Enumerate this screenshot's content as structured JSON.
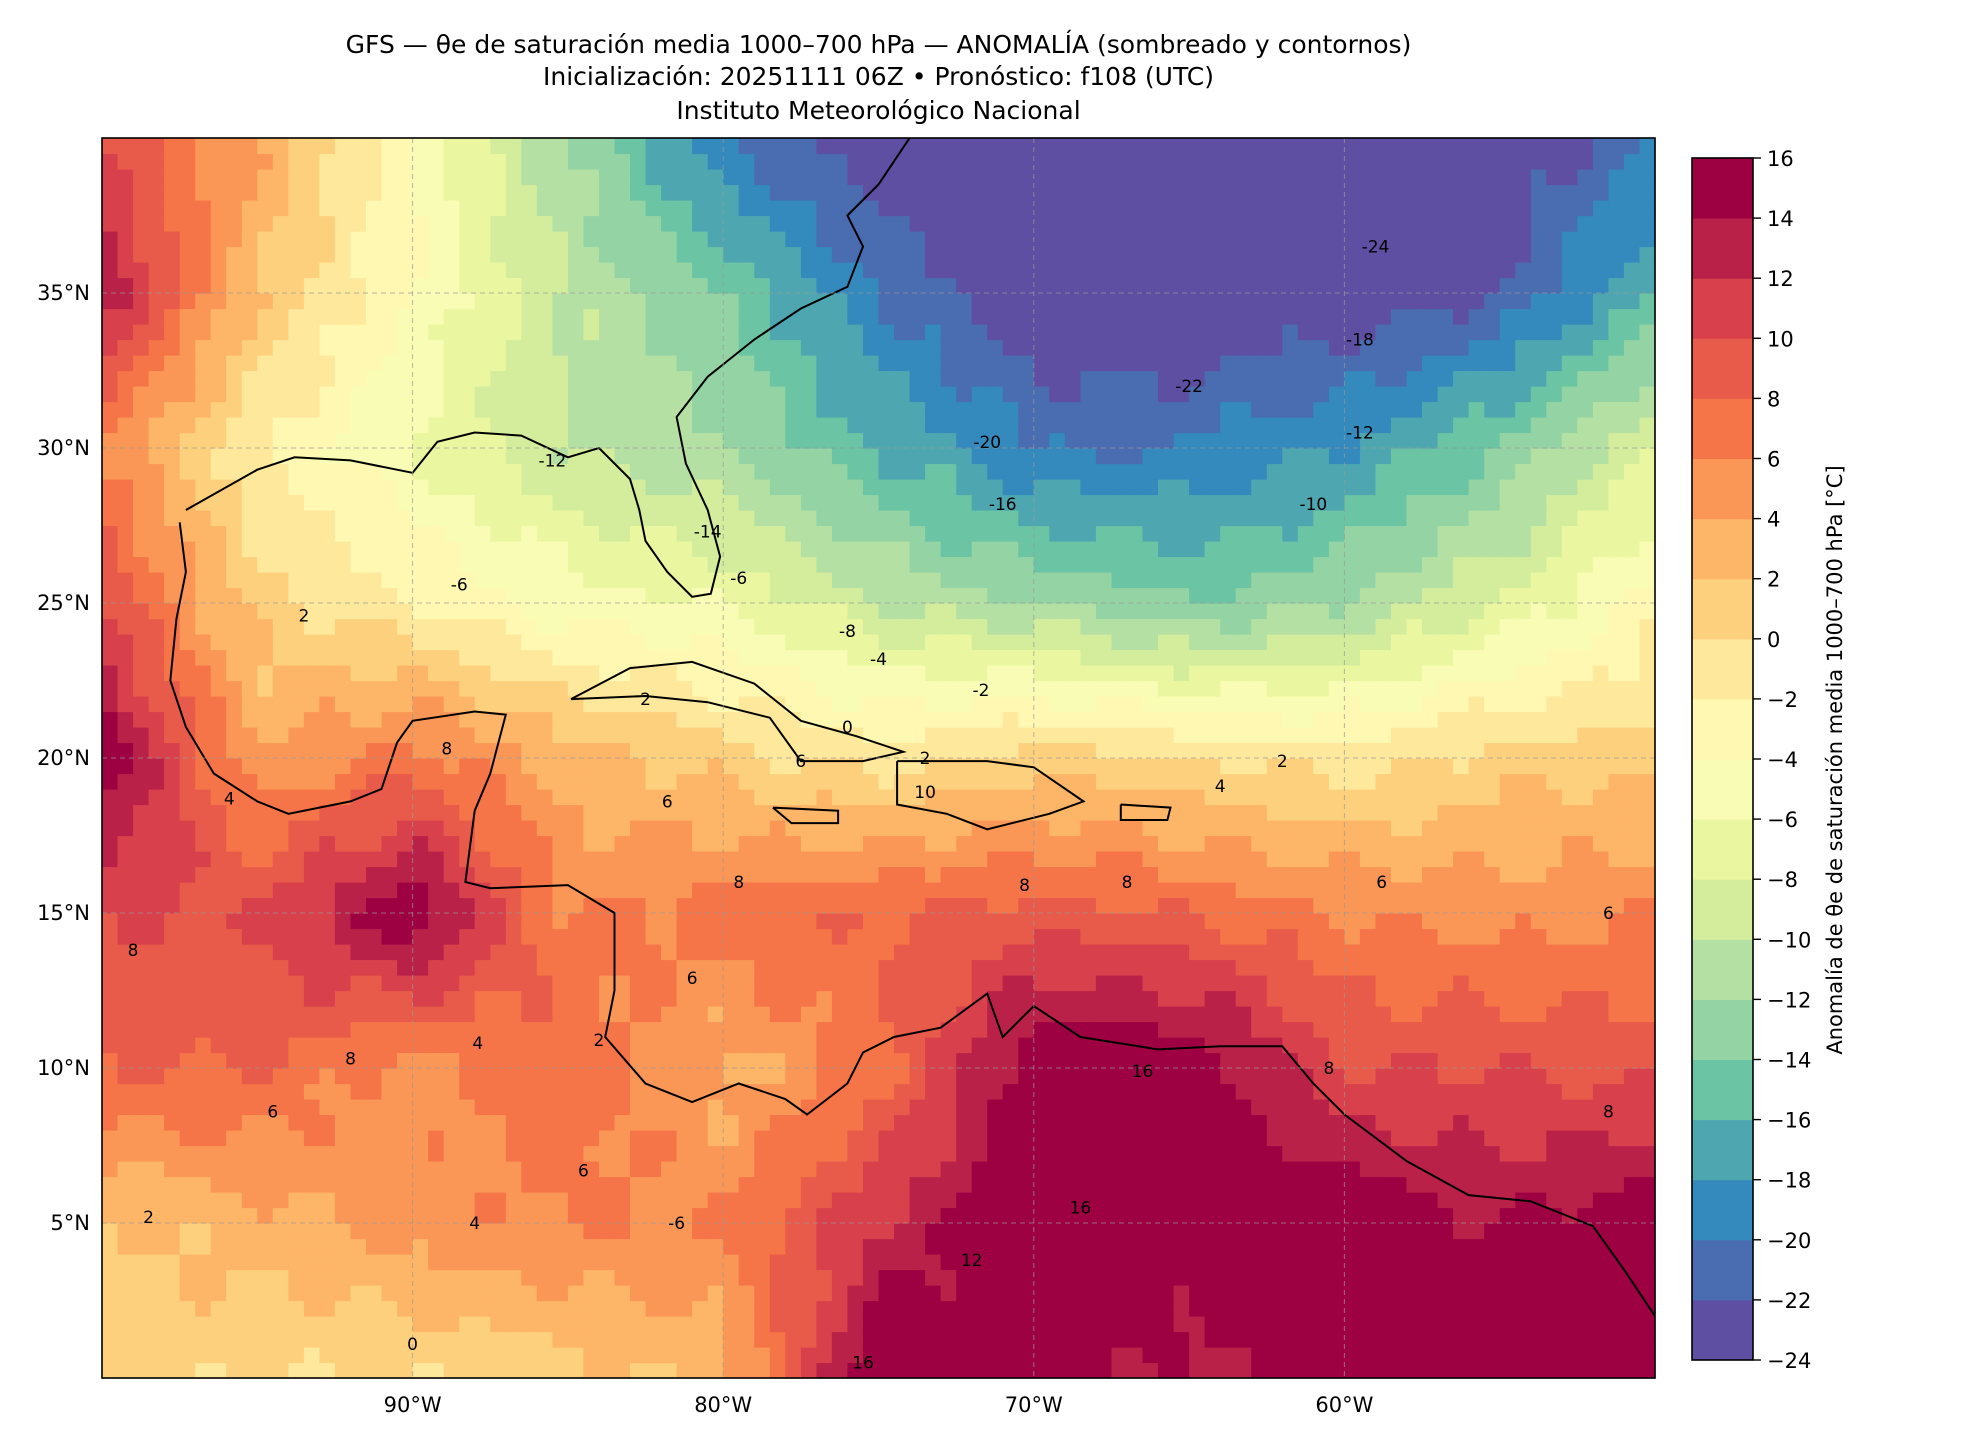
{
  "title": {
    "line1": "GFS — θe de saturación media 1000–700 hPa — ANOMALÍA (sombreado y contornos)",
    "line2": "Inicialización: 20251111 06Z   •   Pronóstico: f108 (UTC)",
    "line3": "Instituto Meteorológico Nacional"
  },
  "chart_data": {
    "type": "heatmap",
    "title": "GFS — θe de saturación media 1000–700 hPa — ANOMALÍA (sombreado y contornos)",
    "extent": {
      "lon": [
        -100,
        -50
      ],
      "lat": [
        0,
        40
      ]
    },
    "grid_lons": [
      -100,
      -95,
      -90,
      -85,
      -80,
      -75,
      -70,
      -65,
      -60,
      -55,
      -50
    ],
    "grid_lats": [
      40,
      35,
      30,
      25,
      20,
      15,
      10,
      5,
      0
    ],
    "values": [
      [
        10,
        4,
        -4,
        -12,
        -20,
        -24,
        -24,
        -24,
        -24,
        -24,
        -20
      ],
      [
        14,
        2,
        -4,
        -10,
        -14,
        -20,
        -24,
        -24,
        -24,
        -22,
        -16
      ],
      [
        6,
        -2,
        -6,
        -10,
        -12,
        -16,
        -20,
        -20,
        -18,
        -14,
        -8
      ],
      [
        10,
        1,
        -2,
        -5,
        -6,
        -10,
        -12,
        -14,
        -12,
        -8,
        -3
      ],
      [
        16,
        4,
        7,
        3,
        1,
        -1,
        1,
        0,
        -1,
        1,
        1
      ],
      [
        10,
        10,
        16,
        6,
        7,
        8,
        9,
        8,
        6,
        5,
        6
      ],
      [
        8,
        8,
        5,
        8,
        3,
        7,
        16,
        16,
        10,
        10,
        9
      ],
      [
        2,
        3,
        5,
        6,
        6,
        12,
        16,
        16,
        16,
        14,
        16
      ],
      [
        1,
        0,
        0,
        1,
        3,
        16,
        16,
        13,
        16,
        16,
        16
      ]
    ],
    "x_ticks": [
      {
        "value": -90,
        "label": "90°W"
      },
      {
        "value": -80,
        "label": "80°W"
      },
      {
        "value": -70,
        "label": "70°W"
      },
      {
        "value": -60,
        "label": "60°W"
      }
    ],
    "y_ticks": [
      {
        "value": 35,
        "label": "35°N"
      },
      {
        "value": 30,
        "label": "30°N"
      },
      {
        "value": 25,
        "label": "25°N"
      },
      {
        "value": 20,
        "label": "20°N"
      },
      {
        "value": 15,
        "label": "15°N"
      },
      {
        "value": 10,
        "label": "10°N"
      },
      {
        "value": 5,
        "label": "5°N"
      }
    ],
    "grid": true,
    "colorbar": {
      "label": "Anomalía de θe de saturación media 1000–700 hPa [°C]",
      "levels": [
        -24,
        -22,
        -20,
        -18,
        -16,
        -14,
        -12,
        -10,
        -8,
        -6,
        -4,
        -2,
        0,
        2,
        4,
        6,
        8,
        10,
        12,
        14,
        16
      ],
      "tick_labels": [
        "−24",
        "−22",
        "−20",
        "−18",
        "−16",
        "−14",
        "−12",
        "−10",
        "−8",
        "−6",
        "−4",
        "−2",
        "0",
        "2",
        "4",
        "6",
        "8",
        "10",
        "12",
        "14",
        "16"
      ],
      "colors": [
        "#5e4fa2",
        "#4a6cb0",
        "#3489bd",
        "#4ea7b0",
        "#6bc4a4",
        "#94d4a4",
        "#b5e0a3",
        "#d4ed9c",
        "#ebf7a0",
        "#f9fcb4",
        "#fef8b3",
        "#fee89b",
        "#fdd07e",
        "#fdb567",
        "#fa9757",
        "#f57448",
        "#e85b4a",
        "#d8404c",
        "#ba2149",
        "#9e0142"
      ]
    },
    "contour_labels": [
      {
        "lon": -59,
        "lat": 36.5,
        "text": "-24"
      },
      {
        "lon": -59.5,
        "lat": 33.5,
        "text": "-18"
      },
      {
        "lon": -65,
        "lat": 32,
        "text": "-22"
      },
      {
        "lon": -71.5,
        "lat": 30.2,
        "text": "-20"
      },
      {
        "lon": -71,
        "lat": 28.2,
        "text": "-16"
      },
      {
        "lon": -59.5,
        "lat": 30.5,
        "text": "-12"
      },
      {
        "lon": -61,
        "lat": 28.2,
        "text": "-10"
      },
      {
        "lon": -85.5,
        "lat": 29.6,
        "text": "-12"
      },
      {
        "lon": -80.5,
        "lat": 27.3,
        "text": "-14"
      },
      {
        "lon": -88.5,
        "lat": 25.6,
        "text": "-6"
      },
      {
        "lon": -79.5,
        "lat": 25.8,
        "text": "-6"
      },
      {
        "lon": -76,
        "lat": 24.1,
        "text": "-8"
      },
      {
        "lon": -75,
        "lat": 23.2,
        "text": "-4"
      },
      {
        "lon": -71.7,
        "lat": 22.2,
        "text": "-2"
      },
      {
        "lon": -93.5,
        "lat": 24.6,
        "text": "2"
      },
      {
        "lon": -82.5,
        "lat": 21.9,
        "text": "2"
      },
      {
        "lon": -76,
        "lat": 21,
        "text": "0"
      },
      {
        "lon": -73.5,
        "lat": 20,
        "text": "2"
      },
      {
        "lon": -62,
        "lat": 19.9,
        "text": "2"
      },
      {
        "lon": -77.5,
        "lat": 19.9,
        "text": "6"
      },
      {
        "lon": -81.8,
        "lat": 18.6,
        "text": "6"
      },
      {
        "lon": -95.9,
        "lat": 18.7,
        "text": "4"
      },
      {
        "lon": -88.9,
        "lat": 20.3,
        "text": "8"
      },
      {
        "lon": -73.5,
        "lat": 18.9,
        "text": "10"
      },
      {
        "lon": -64,
        "lat": 19.1,
        "text": "4"
      },
      {
        "lon": -70.3,
        "lat": 15.9,
        "text": "8"
      },
      {
        "lon": -67,
        "lat": 16,
        "text": "8"
      },
      {
        "lon": -79.5,
        "lat": 16,
        "text": "8"
      },
      {
        "lon": -58.8,
        "lat": 16,
        "text": "6"
      },
      {
        "lon": -51.5,
        "lat": 15,
        "text": "6"
      },
      {
        "lon": -99,
        "lat": 13.8,
        "text": "8"
      },
      {
        "lon": -92,
        "lat": 10.3,
        "text": "8"
      },
      {
        "lon": -87.9,
        "lat": 10.8,
        "text": "4"
      },
      {
        "lon": -94.5,
        "lat": 8.6,
        "text": "6"
      },
      {
        "lon": -81,
        "lat": 12.9,
        "text": "6"
      },
      {
        "lon": -84,
        "lat": 10.9,
        "text": "2"
      },
      {
        "lon": -84.5,
        "lat": 6.7,
        "text": "6"
      },
      {
        "lon": -88,
        "lat": 5,
        "text": "4"
      },
      {
        "lon": -98.5,
        "lat": 5.2,
        "text": "2"
      },
      {
        "lon": -81.5,
        "lat": 5,
        "text": "-6"
      },
      {
        "lon": -66.5,
        "lat": 9.9,
        "text": "16"
      },
      {
        "lon": -60.5,
        "lat": 10,
        "text": "8"
      },
      {
        "lon": -51.5,
        "lat": 8.6,
        "text": "8"
      },
      {
        "lon": -72,
        "lat": 3.8,
        "text": "12"
      },
      {
        "lon": -68.5,
        "lat": 5.5,
        "text": "16"
      },
      {
        "lon": -75.5,
        "lat": 0.5,
        "text": "16"
      },
      {
        "lon": -90,
        "lat": 1.1,
        "text": "0"
      }
    ],
    "coastlines": [
      [
        [
          -97.5,
          27.6
        ],
        [
          -97.3,
          26
        ],
        [
          -97.6,
          24.5
        ],
        [
          -97.8,
          22.5
        ],
        [
          -97.3,
          21
        ],
        [
          -96.4,
          19.5
        ],
        [
          -95,
          18.6
        ],
        [
          -94,
          18.2
        ],
        [
          -92,
          18.6
        ],
        [
          -91,
          19
        ],
        [
          -90.5,
          20.5
        ],
        [
          -90,
          21.2
        ],
        [
          -88,
          21.5
        ],
        [
          -87,
          21.4
        ],
        [
          -87.5,
          19.5
        ],
        [
          -88,
          18.3
        ],
        [
          -88.3,
          16
        ],
        [
          -87.5,
          15.8
        ],
        [
          -85,
          15.9
        ],
        [
          -83.5,
          15
        ],
        [
          -83.5,
          12.5
        ],
        [
          -83.8,
          11
        ],
        [
          -82.5,
          9.5
        ],
        [
          -81,
          8.9
        ],
        [
          -79.5,
          9.5
        ],
        [
          -78,
          9
        ],
        [
          -77.3,
          8.5
        ],
        [
          -76,
          9.5
        ],
        [
          -75.5,
          10.5
        ],
        [
          -74.5,
          11
        ],
        [
          -73,
          11.3
        ],
        [
          -71.5,
          12.4
        ],
        [
          -71,
          11
        ],
        [
          -70,
          12
        ],
        [
          -68.5,
          11
        ],
        [
          -66,
          10.6
        ],
        [
          -64,
          10.7
        ],
        [
          -62,
          10.7
        ],
        [
          -61,
          9.5
        ],
        [
          -60,
          8.5
        ],
        [
          -58,
          7
        ],
        [
          -56,
          5.9
        ],
        [
          -54,
          5.7
        ],
        [
          -52,
          4.9
        ],
        [
          -51,
          3.5
        ],
        [
          -50,
          2
        ]
      ],
      [
        [
          -97.3,
          28
        ],
        [
          -95,
          29.3
        ],
        [
          -93.8,
          29.7
        ],
        [
          -92,
          29.6
        ],
        [
          -90,
          29.2
        ],
        [
          -89.2,
          30.2
        ],
        [
          -88,
          30.5
        ],
        [
          -86.5,
          30.4
        ],
        [
          -85,
          29.7
        ],
        [
          -84,
          30
        ],
        [
          -83,
          29
        ],
        [
          -82.7,
          28
        ],
        [
          -82.5,
          27
        ],
        [
          -81.8,
          26
        ],
        [
          -81,
          25.2
        ],
        [
          -80.4,
          25.3
        ],
        [
          -80.1,
          26.5
        ],
        [
          -80.5,
          28
        ],
        [
          -81.2,
          29.5
        ],
        [
          -81.5,
          31
        ],
        [
          -80.5,
          32.3
        ],
        [
          -79,
          33.5
        ],
        [
          -77.5,
          34.5
        ],
        [
          -76,
          35.2
        ],
        [
          -75.5,
          36.5
        ],
        [
          -76,
          37.5
        ],
        [
          -75,
          38.5
        ],
        [
          -74,
          40
        ]
      ],
      [
        [
          -84.9,
          21.9
        ],
        [
          -83,
          22.9
        ],
        [
          -81,
          23.1
        ],
        [
          -79,
          22.4
        ],
        [
          -77.5,
          21.2
        ],
        [
          -75.7,
          20.7
        ],
        [
          -74.2,
          20.2
        ],
        [
          -75.5,
          19.9
        ],
        [
          -77.5,
          19.9
        ],
        [
          -78.5,
          21.3
        ],
        [
          -80.5,
          21.8
        ],
        [
          -82.5,
          22
        ],
        [
          -84.9,
          21.9
        ]
      ],
      [
        [
          -74.4,
          19.9
        ],
        [
          -72.8,
          19.9
        ],
        [
          -71.5,
          19.9
        ],
        [
          -70,
          19.7
        ],
        [
          -68.4,
          18.6
        ],
        [
          -69.5,
          18.2
        ],
        [
          -71.5,
          17.7
        ],
        [
          -72.8,
          18.2
        ],
        [
          -74.4,
          18.5
        ],
        [
          -74.4,
          19.9
        ]
      ],
      [
        [
          -78.4,
          18.4
        ],
        [
          -76.3,
          18.3
        ],
        [
          -76.3,
          17.9
        ],
        [
          -77.8,
          17.9
        ],
        [
          -78.4,
          18.4
        ]
      ],
      [
        [
          -67.2,
          18.5
        ],
        [
          -65.6,
          18.4
        ],
        [
          -65.7,
          18
        ],
        [
          -67.2,
          18
        ],
        [
          -67.2,
          18.5
        ]
      ]
    ]
  }
}
